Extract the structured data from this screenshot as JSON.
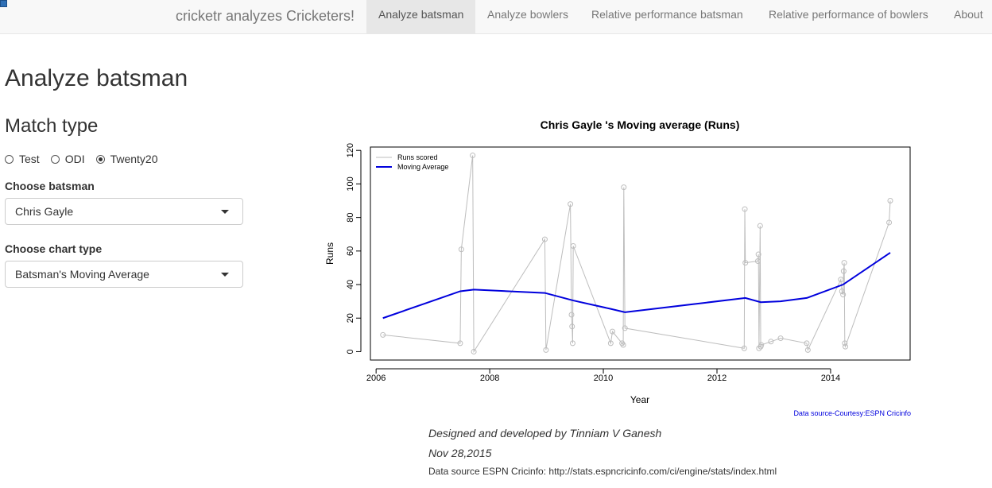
{
  "navbar": {
    "brand": "cricketr analyzes Cricketers!",
    "tabs": [
      {
        "label": "Analyze batsman",
        "active": true
      },
      {
        "label": "Analyze bowlers",
        "active": false
      },
      {
        "label": "Relative performance batsman",
        "active": false
      },
      {
        "label": "Relative performance of bowlers",
        "active": false
      },
      {
        "label": "About",
        "active": false
      }
    ]
  },
  "page": {
    "title": "Analyze batsman",
    "match_type_heading": "Match type",
    "match_types": [
      {
        "label": "Test",
        "checked": false
      },
      {
        "label": "ODI",
        "checked": false
      },
      {
        "label": "Twenty20",
        "checked": true
      }
    ],
    "batsman_label": "Choose batsman",
    "batsman_value": "Chris Gayle",
    "chart_type_label": "Choose chart type",
    "chart_type_value": "Batsman's Moving Average"
  },
  "chart_data": {
    "type": "line",
    "title": "Chris Gayle 's Moving average (Runs)",
    "xlabel": "Year",
    "ylabel": "Runs",
    "xlim": [
      2005.9,
      2015.4
    ],
    "ylim": [
      -5,
      122
    ],
    "xticks": [
      2006,
      2008,
      2010,
      2012,
      2014
    ],
    "yticks": [
      0,
      20,
      40,
      60,
      80,
      100,
      120
    ],
    "legend_position": "top-left",
    "source_note": "Data source-Courtesy:ESPN Cricinfo",
    "series": [
      {
        "name": "Runs scored",
        "color": "#bdbdbd",
        "x": [
          2006.12,
          2007.48,
          2007.5,
          2007.7,
          2007.72,
          2008.97,
          2008.99,
          2009.42,
          2009.44,
          2009.45,
          2009.46,
          2009.47,
          2010.13,
          2010.16,
          2010.33,
          2010.35,
          2010.36,
          2010.38,
          2012.48,
          2012.49,
          2012.5,
          2012.72,
          2012.73,
          2012.74,
          2012.76,
          2012.77,
          2012.78,
          2012.95,
          2013.12,
          2013.58,
          2013.6,
          2014.18,
          2014.2,
          2014.22,
          2014.23,
          2014.24,
          2014.25,
          2014.26,
          2015.03,
          2015.05
        ],
        "y": [
          10,
          5,
          61,
          117,
          0,
          67,
          1,
          88,
          22,
          15,
          5,
          63,
          5,
          12,
          5,
          4,
          98,
          14,
          2,
          85,
          53,
          54,
          58,
          2,
          75,
          3,
          4,
          6,
          8,
          5,
          1,
          43,
          36,
          34,
          48,
          53,
          5,
          3,
          77,
          90
        ]
      },
      {
        "name": "Moving Average",
        "color": "#0000dd",
        "x": [
          2006.12,
          2007.48,
          2007.72,
          2008.97,
          2009.47,
          2010.13,
          2010.38,
          2012.5,
          2012.77,
          2013.12,
          2013.58,
          2014.22,
          2015.05
        ],
        "y": [
          20,
          36,
          37,
          35,
          30.5,
          25.5,
          23.5,
          32,
          29.5,
          30,
          32,
          40,
          59
        ]
      }
    ]
  },
  "footer": {
    "credit": "Designed and developed by Tinniam V Ganesh",
    "date": "Nov 28,2015",
    "source": "Data source ESPN Cricinfo: http://stats.espncricinfo.com/ci/engine/stats/index.html"
  }
}
